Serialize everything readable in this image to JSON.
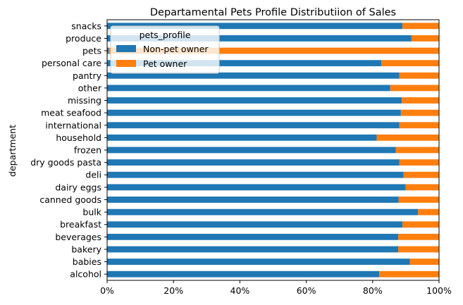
{
  "chart_data": {
    "type": "bar",
    "orientation": "horizontal",
    "stacked": true,
    "normalized": true,
    "title": "Departamental Pets Profile Distributiion of Sales",
    "xlabel": "",
    "ylabel": "department",
    "xlim": [
      0,
      1
    ],
    "x_ticks": [
      "0%",
      "20%",
      "40%",
      "60%",
      "80%",
      "100%"
    ],
    "categories": [
      "alcohol",
      "babies",
      "bakery",
      "beverages",
      "breakfast",
      "bulk",
      "canned goods",
      "dairy eggs",
      "deli",
      "dry goods pasta",
      "frozen",
      "household",
      "international",
      "meat seafood",
      "missing",
      "other",
      "pantry",
      "personal care",
      "pets",
      "produce",
      "snacks"
    ],
    "series": [
      {
        "name": "Non-pet owner",
        "color": "#1f77b4",
        "values": [
          0.82,
          0.912,
          0.877,
          0.877,
          0.89,
          0.937,
          0.878,
          0.899,
          0.893,
          0.88,
          0.87,
          0.812,
          0.88,
          0.885,
          0.888,
          0.853,
          0.88,
          0.826,
          0.005,
          0.917,
          0.89
        ]
      },
      {
        "name": "Pet owner",
        "color": "#ff7f0e",
        "values": [
          0.18,
          0.088,
          0.123,
          0.123,
          0.11,
          0.063,
          0.122,
          0.101,
          0.107,
          0.12,
          0.13,
          0.188,
          0.12,
          0.115,
          0.112,
          0.147,
          0.12,
          0.174,
          0.995,
          0.083,
          0.11
        ]
      }
    ],
    "legend": {
      "title": "pets_profile",
      "position": "top-left"
    },
    "grid": false
  }
}
